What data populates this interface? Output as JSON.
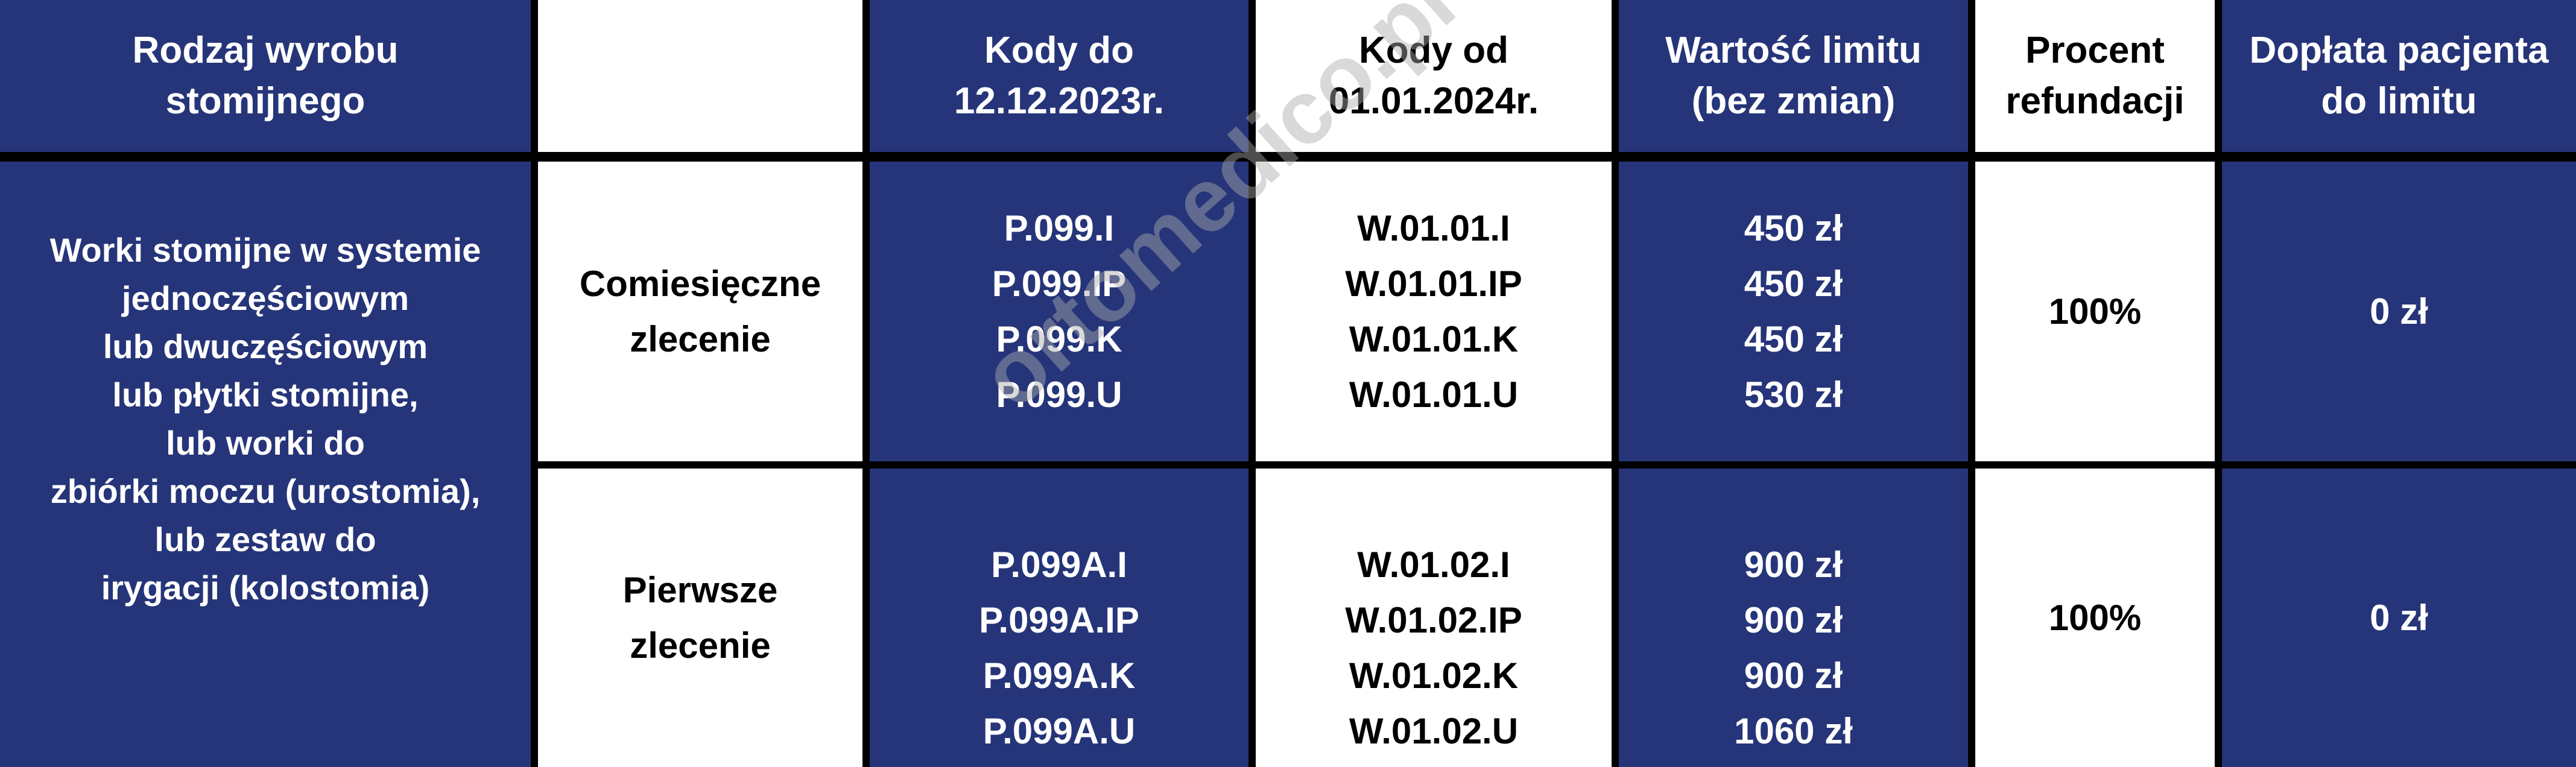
{
  "colors": {
    "blue": "#263579",
    "white": "#ffffff",
    "border": "#000000"
  },
  "header": {
    "product_type": [
      "Rodzaj wyrobu",
      "stomijnego"
    ],
    "empty": "",
    "codes_old": [
      "Kody do",
      "12.12.2023r."
    ],
    "codes_new": [
      "Kody od",
      "01.01.2024r."
    ],
    "limit_value": [
      "Wartość limitu",
      "(bez zmian)"
    ],
    "refund_percent": [
      "Procent",
      "refundacji"
    ],
    "patient_copay": [
      "Dopłata pacjenta",
      "do limitu"
    ]
  },
  "product_description": [
    "Worki stomijne w systemie",
    "jednoczęściowym",
    "lub dwuczęściowym",
    "lub płytki stomijne,",
    "lub worki do",
    "zbiórki moczu (urostomia),",
    "lub zestaw do",
    "irygacji (kolostomia)"
  ],
  "rows": [
    {
      "order_type": [
        "Comiesięczne",
        "zlecenie"
      ],
      "codes_old": [
        "P.099.I",
        "P.099.IP",
        "P.099.K",
        "P.099.U"
      ],
      "codes_new": [
        "W.01.01.I",
        "W.01.01.IP",
        "W.01.01.K",
        "W.01.01.U"
      ],
      "limits": [
        "450 zł",
        "450 zł",
        "450 zł",
        "530 zł"
      ],
      "refund": "100%",
      "copay": "0 zł"
    },
    {
      "order_type": [
        "Pierwsze",
        "zlecenie"
      ],
      "codes_old": [
        "P.099A.I",
        "P.099A.IP",
        "P.099A.K",
        "P.099A.U"
      ],
      "codes_new": [
        "W.01.02.I",
        "W.01.02.IP",
        "W.01.02.K",
        "W.01.02.U"
      ],
      "limits": [
        "900 zł",
        "900 zł",
        "900 zł",
        "1060 zł"
      ],
      "refund": "100%",
      "copay": "0 zł"
    }
  ],
  "watermark": "ortomedico.pl"
}
